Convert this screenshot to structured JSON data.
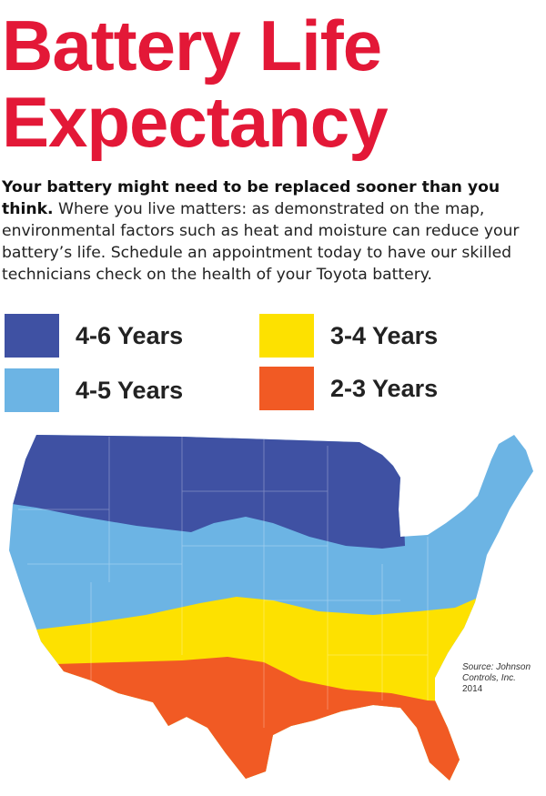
{
  "title": {
    "line1": "Battery Life",
    "line2": "Expectancy"
  },
  "intro": {
    "lead": "Your battery might need to be replaced sooner than you think.",
    "body": "Where you live matters: as demonstrated on the map, environmental factors such as heat and moisture can reduce your battery’s life. Schedule an appointment today to have our skilled technicians check on the health of your Toyota battery."
  },
  "colors": {
    "title": "#e31837",
    "dark_blue": "#3f51a3",
    "light_blue": "#6cb4e4",
    "yellow": "#fde100",
    "orange": "#f15a24"
  },
  "legend": [
    {
      "label": "4-6 Years",
      "color": "#3f51a3"
    },
    {
      "label": "4-5 Years",
      "color": "#6cb4e4"
    },
    {
      "label": "3-4 Years",
      "color": "#fde100"
    },
    {
      "label": "2-3 Years",
      "color": "#f15a24"
    }
  ],
  "source": {
    "line1": "Source: Johnson",
    "line2": "Controls, Inc.",
    "year": "2014"
  }
}
